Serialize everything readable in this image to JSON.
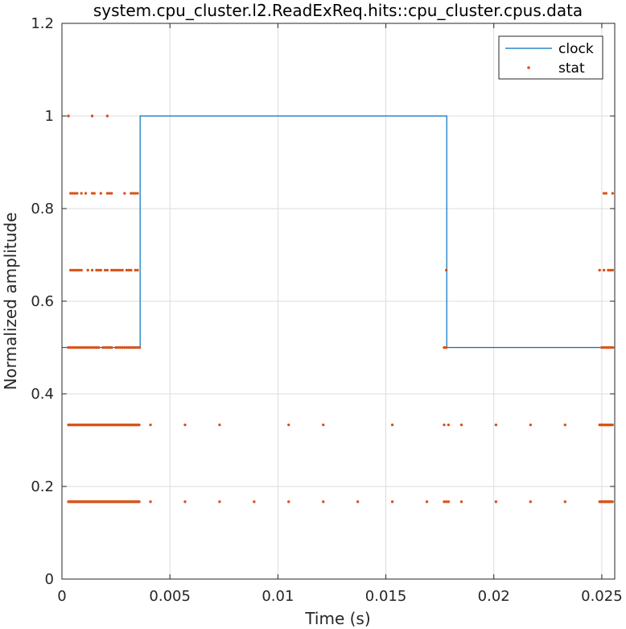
{
  "chart_data": {
    "type": "line",
    "title": "system.cpu_cluster.l2.ReadExReq.hits::cpu_cluster.cpus.data",
    "xlabel": "Time (s)",
    "ylabel": "Normalized amplitude",
    "xlim": [
      0,
      0.0256
    ],
    "ylim": [
      0,
      1.2
    ],
    "x_ticks": [
      0,
      0.005,
      0.01,
      0.015,
      0.02,
      0.025
    ],
    "x_tick_labels": [
      "0",
      "0.005",
      "0.01",
      "0.015",
      "0.02",
      "0.025"
    ],
    "y_ticks": [
      0,
      0.2,
      0.4,
      0.6,
      0.8,
      1.0,
      1.2
    ],
    "y_tick_labels": [
      "0",
      "0.2",
      "0.4",
      "0.6",
      "0.8",
      "1",
      "1.2"
    ],
    "grid": true,
    "legend_position": "top-right",
    "series": [
      {
        "name": "clock",
        "style": "line",
        "color": "#0072BD",
        "x": [
          0,
          0.00362,
          0.00362,
          0.01782,
          0.01782,
          0.0256
        ],
        "y": [
          0.5,
          0.5,
          1.0,
          1.0,
          0.5,
          0.5
        ]
      },
      {
        "name": "stat",
        "style": "markers",
        "color": "#D95319",
        "points": [
          [
            0.0003,
            1.0
          ],
          [
            0.0014,
            1.0
          ],
          [
            0.0021,
            1.0
          ],
          [
            0.0004,
            0.833
          ],
          [
            0.0005,
            0.833
          ],
          [
            0.0006,
            0.833
          ],
          [
            0.0007,
            0.833
          ],
          [
            0.0009,
            0.833
          ],
          [
            0.0011,
            0.833
          ],
          [
            0.0014,
            0.833
          ],
          [
            0.0015,
            0.833
          ],
          [
            0.0018,
            0.833
          ],
          [
            0.0021,
            0.833
          ],
          [
            0.0022,
            0.833
          ],
          [
            0.0023,
            0.833
          ],
          [
            0.0029,
            0.833
          ],
          [
            0.0032,
            0.833
          ],
          [
            0.0033,
            0.833
          ],
          [
            0.0034,
            0.833
          ],
          [
            0.0035,
            0.833
          ],
          [
            0.0251,
            0.833
          ],
          [
            0.0252,
            0.833
          ],
          [
            0.0255,
            0.833
          ],
          [
            0.0004,
            0.667
          ],
          [
            0.0005,
            0.667
          ],
          [
            0.0006,
            0.667
          ],
          [
            0.0007,
            0.667
          ],
          [
            0.0008,
            0.667
          ],
          [
            0.0009,
            0.667
          ],
          [
            0.0012,
            0.667
          ],
          [
            0.0014,
            0.667
          ],
          [
            0.0016,
            0.667
          ],
          [
            0.0017,
            0.667
          ],
          [
            0.0018,
            0.667
          ],
          [
            0.002,
            0.667
          ],
          [
            0.0021,
            0.667
          ],
          [
            0.0023,
            0.667
          ],
          [
            0.0024,
            0.667
          ],
          [
            0.0025,
            0.667
          ],
          [
            0.0026,
            0.667
          ],
          [
            0.0027,
            0.667
          ],
          [
            0.0028,
            0.667
          ],
          [
            0.003,
            0.667
          ],
          [
            0.0031,
            0.667
          ],
          [
            0.0032,
            0.667
          ],
          [
            0.0034,
            0.667
          ],
          [
            0.0035,
            0.667
          ],
          [
            0.0178,
            0.667
          ],
          [
            0.0249,
            0.667
          ],
          [
            0.0251,
            0.667
          ],
          [
            0.0253,
            0.667
          ],
          [
            0.0254,
            0.667
          ],
          [
            0.0255,
            0.667
          ],
          [
            0.0003,
            0.5
          ],
          [
            0.0004,
            0.5
          ],
          [
            0.0005,
            0.5
          ],
          [
            0.0006,
            0.5
          ],
          [
            0.0007,
            0.5
          ],
          [
            0.0008,
            0.5
          ],
          [
            0.0009,
            0.5
          ],
          [
            0.001,
            0.5
          ],
          [
            0.0011,
            0.5
          ],
          [
            0.0012,
            0.5
          ],
          [
            0.0013,
            0.5
          ],
          [
            0.0014,
            0.5
          ],
          [
            0.0015,
            0.5
          ],
          [
            0.0016,
            0.5
          ],
          [
            0.0017,
            0.5
          ],
          [
            0.0019,
            0.5
          ],
          [
            0.002,
            0.5
          ],
          [
            0.0021,
            0.5
          ],
          [
            0.0022,
            0.5
          ],
          [
            0.0023,
            0.5
          ],
          [
            0.0025,
            0.5
          ],
          [
            0.0026,
            0.5
          ],
          [
            0.0027,
            0.5
          ],
          [
            0.0028,
            0.5
          ],
          [
            0.0029,
            0.5
          ],
          [
            0.003,
            0.5
          ],
          [
            0.0031,
            0.5
          ],
          [
            0.0032,
            0.5
          ],
          [
            0.0033,
            0.5
          ],
          [
            0.0034,
            0.5
          ],
          [
            0.0035,
            0.5
          ],
          [
            0.0036,
            0.5
          ],
          [
            0.0177,
            0.5
          ],
          [
            0.0178,
            0.5
          ],
          [
            0.025,
            0.5
          ],
          [
            0.0251,
            0.5
          ],
          [
            0.0252,
            0.5
          ],
          [
            0.0253,
            0.5
          ],
          [
            0.0254,
            0.5
          ],
          [
            0.0255,
            0.5
          ],
          [
            0.0041,
            0.333
          ],
          [
            0.0057,
            0.333
          ],
          [
            0.0073,
            0.333
          ],
          [
            0.0105,
            0.333
          ],
          [
            0.0121,
            0.333
          ],
          [
            0.0153,
            0.333
          ],
          [
            0.0177,
            0.333
          ],
          [
            0.0179,
            0.333
          ],
          [
            0.0185,
            0.333
          ],
          [
            0.0201,
            0.333
          ],
          [
            0.0217,
            0.333
          ],
          [
            0.0233,
            0.333
          ],
          [
            0.0041,
            0.167
          ],
          [
            0.0057,
            0.167
          ],
          [
            0.0073,
            0.167
          ],
          [
            0.0089,
            0.167
          ],
          [
            0.0105,
            0.167
          ],
          [
            0.0121,
            0.167
          ],
          [
            0.0137,
            0.167
          ],
          [
            0.0153,
            0.167
          ],
          [
            0.0169,
            0.167
          ],
          [
            0.0177,
            0.167
          ],
          [
            0.0178,
            0.167
          ],
          [
            0.0179,
            0.167
          ],
          [
            0.0185,
            0.167
          ],
          [
            0.0201,
            0.167
          ],
          [
            0.0217,
            0.167
          ],
          [
            0.0233,
            0.167
          ]
        ],
        "dense_runs": [
          {
            "y": 0.333,
            "x_start": 0.0003,
            "x_end": 0.0036
          },
          {
            "y": 0.333,
            "x_start": 0.0249,
            "x_end": 0.0255
          },
          {
            "y": 0.167,
            "x_start": 0.0003,
            "x_end": 0.0036
          },
          {
            "y": 0.167,
            "x_start": 0.0249,
            "x_end": 0.0255
          }
        ]
      }
    ]
  }
}
